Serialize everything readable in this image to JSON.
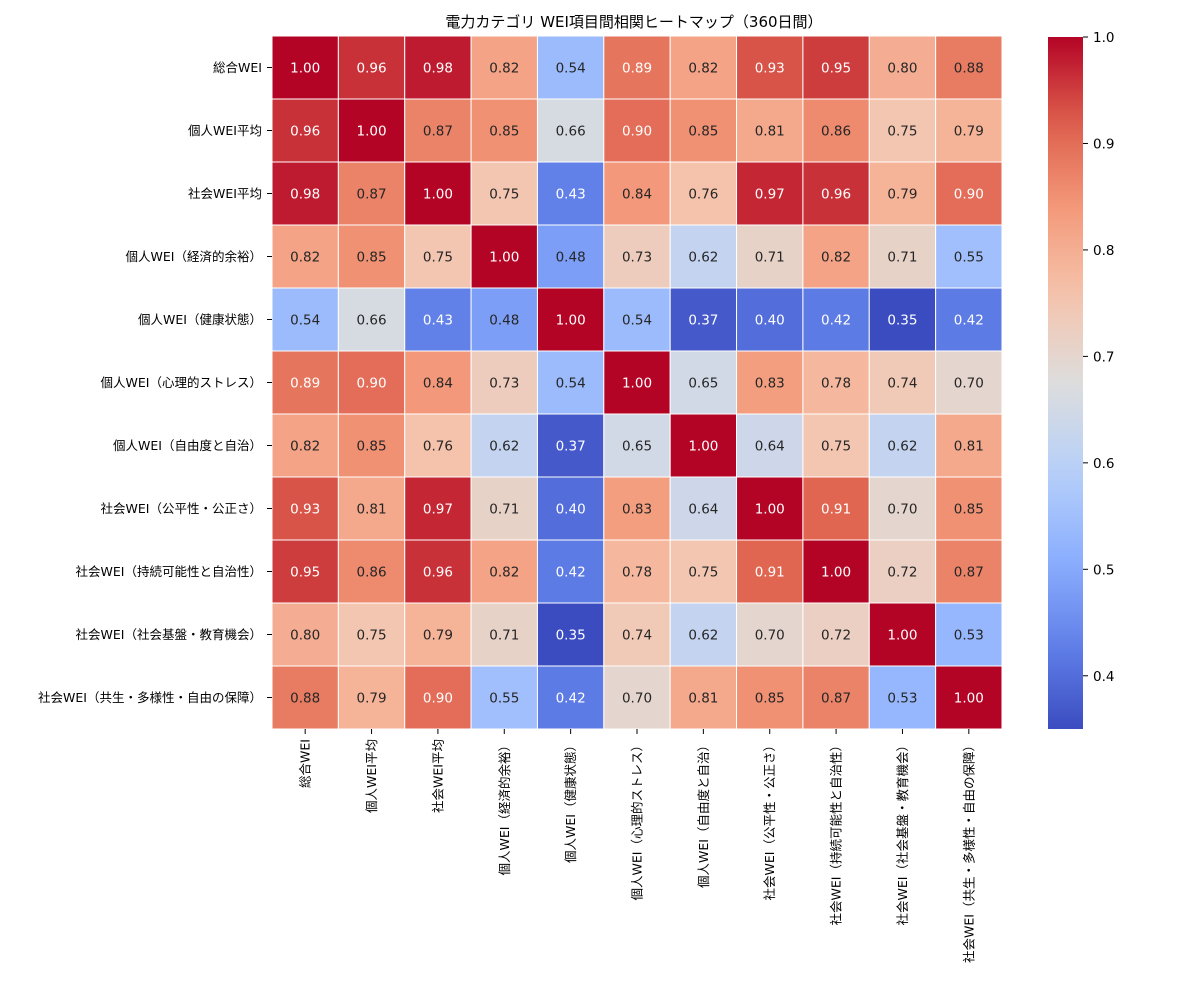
{
  "chart_data": {
    "type": "heatmap",
    "title": "電力カテゴリ WEI項目間相関ヒートマップ（360日間）",
    "row_labels": [
      "総合WEI",
      "個人WEI平均",
      "社会WEI平均",
      "個人WEI（経済的余裕）",
      "個人WEI（健康状態）",
      "個人WEI（心理的ストレス）",
      "個人WEI（自由度と自治）",
      "社会WEI（公平性・公正さ）",
      "社会WEI（持続可能性と自治性）",
      "社会WEI（社会基盤・教育機会）",
      "社会WEI（共生・多様性・自由の保障）"
    ],
    "col_labels": [
      "総合WEI",
      "個人WEI平均",
      "社会WEI平均",
      "個人WEI（経済的余裕）",
      "個人WEI（健康状態）",
      "個人WEI（心理的ストレス）",
      "個人WEI（自由度と自治）",
      "社会WEI（公平性・公正さ）",
      "社会WEI（持続可能性と自治性）",
      "社会WEI（社会基盤・教育機会）",
      "社会WEI（共生・多様性・自由の保障）"
    ],
    "values": [
      [
        1.0,
        0.96,
        0.98,
        0.82,
        0.54,
        0.89,
        0.82,
        0.93,
        0.95,
        0.8,
        0.88
      ],
      [
        0.96,
        1.0,
        0.87,
        0.85,
        0.66,
        0.9,
        0.85,
        0.81,
        0.86,
        0.75,
        0.79
      ],
      [
        0.98,
        0.87,
        1.0,
        0.75,
        0.43,
        0.84,
        0.76,
        0.97,
        0.96,
        0.79,
        0.9
      ],
      [
        0.82,
        0.85,
        0.75,
        1.0,
        0.48,
        0.73,
        0.62,
        0.71,
        0.82,
        0.71,
        0.55
      ],
      [
        0.54,
        0.66,
        0.43,
        0.48,
        1.0,
        0.54,
        0.37,
        0.4,
        0.42,
        0.35,
        0.42
      ],
      [
        0.89,
        0.9,
        0.84,
        0.73,
        0.54,
        1.0,
        0.65,
        0.83,
        0.78,
        0.74,
        0.7
      ],
      [
        0.82,
        0.85,
        0.76,
        0.62,
        0.37,
        0.65,
        1.0,
        0.64,
        0.75,
        0.62,
        0.81
      ],
      [
        0.93,
        0.81,
        0.97,
        0.71,
        0.4,
        0.83,
        0.64,
        1.0,
        0.91,
        0.7,
        0.85
      ],
      [
        0.95,
        0.86,
        0.96,
        0.82,
        0.42,
        0.78,
        0.75,
        0.91,
        1.0,
        0.72,
        0.87
      ],
      [
        0.8,
        0.75,
        0.79,
        0.71,
        0.35,
        0.74,
        0.62,
        0.7,
        0.72,
        1.0,
        0.53
      ],
      [
        0.88,
        0.79,
        0.9,
        0.55,
        0.42,
        0.7,
        0.81,
        0.85,
        0.87,
        0.53,
        1.0
      ]
    ],
    "colormap": "coolwarm",
    "vmin": 0.35,
    "vmax": 1.0,
    "value_format": "0.00",
    "colorbar_ticks": [
      "0.4",
      "0.5",
      "0.6",
      "0.7",
      "0.8",
      "0.9",
      "1.0"
    ]
  }
}
